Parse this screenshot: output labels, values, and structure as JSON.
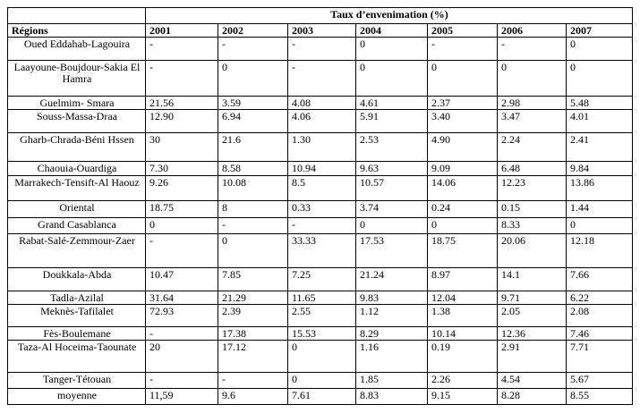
{
  "table": {
    "title": "Taux d’envenimation  (%)",
    "columns": [
      "Régions",
      "2001",
      "2002",
      "2003",
      "2004",
      "2005",
      "2006",
      "2007"
    ],
    "rows": [
      [
        "Oued Eddahab-Lagouira",
        "-",
        "-",
        "-",
        "0",
        "-",
        "-",
        "0"
      ],
      [
        "Laayoune-Boujdour-Sakia El Hamra",
        "-",
        "0",
        "-",
        "0",
        "0",
        "0",
        "0"
      ],
      [
        "Guelmim- Smara",
        "21.56",
        "3.59",
        "4.08",
        "4.61",
        "2.37",
        "2.98",
        "5.48"
      ],
      [
        "Souss-Massa-Draa",
        "12.90",
        "6.94",
        "4.06",
        "5.91",
        "3.40",
        "3.47",
        "4.01"
      ],
      [
        "Gharb-Chrada-Béni Hssen",
        "30",
        "21.6",
        "1.30",
        "2.53",
        "4.90",
        "2.24",
        "2.41"
      ],
      [
        "Chaouia-Ouardiga",
        "7.30",
        "8.58",
        "10.94",
        "9.63",
        "9.09",
        "6.48",
        "9.84"
      ],
      [
        "Marrakech-Tensift-Al Haouz",
        "9.26",
        "10.08",
        "8.5",
        "10.57",
        "14.06",
        "12.23",
        "13.86"
      ],
      [
        "Oriental",
        "18.75",
        "8",
        "0.33",
        "3.74",
        "0.24",
        "0.15",
        "1.44"
      ],
      [
        "Grand Casablanca",
        "0",
        "-",
        "-",
        "0",
        "0",
        "8.33",
        "0"
      ],
      [
        "Rabat-Salé-Zemmour-Zaer",
        "-",
        "0",
        "33.33",
        "17.53",
        "18.75",
        "20.06",
        "12.18"
      ],
      [
        "Doukkala-Abda",
        "10.47",
        "7.85",
        "7.25",
        "21.24",
        "8.97",
        "14.1",
        "7.66"
      ],
      [
        "Tadla-Azilal",
        "31.64",
        "21.29",
        "11.65",
        "9.83",
        "12.04",
        "9.71",
        "6.22"
      ],
      [
        "Meknès-Tafilalet",
        "72.93",
        "2.39",
        "2.55",
        "1.12",
        "1.38",
        "2.05",
        "2.08"
      ],
      [
        "Fès-Boulemane",
        "-",
        "17.38",
        "15.53",
        "8.29",
        "10.14",
        "12.36",
        "7.46"
      ],
      [
        "Taza-Al Hoceima-Taounate",
        "20",
        "17.12",
        "0",
        "1.16",
        "0.19",
        "2.91",
        "7.71"
      ],
      [
        "Tanger-Tétouan",
        "-",
        "-",
        "0",
        "1.85",
        "2.26",
        "4.54",
        "5.67"
      ],
      [
        "moyenne",
        "11,59",
        "9.6",
        "7.61",
        "8.83",
        "9.15",
        "8.28",
        "8.55"
      ]
    ]
  }
}
